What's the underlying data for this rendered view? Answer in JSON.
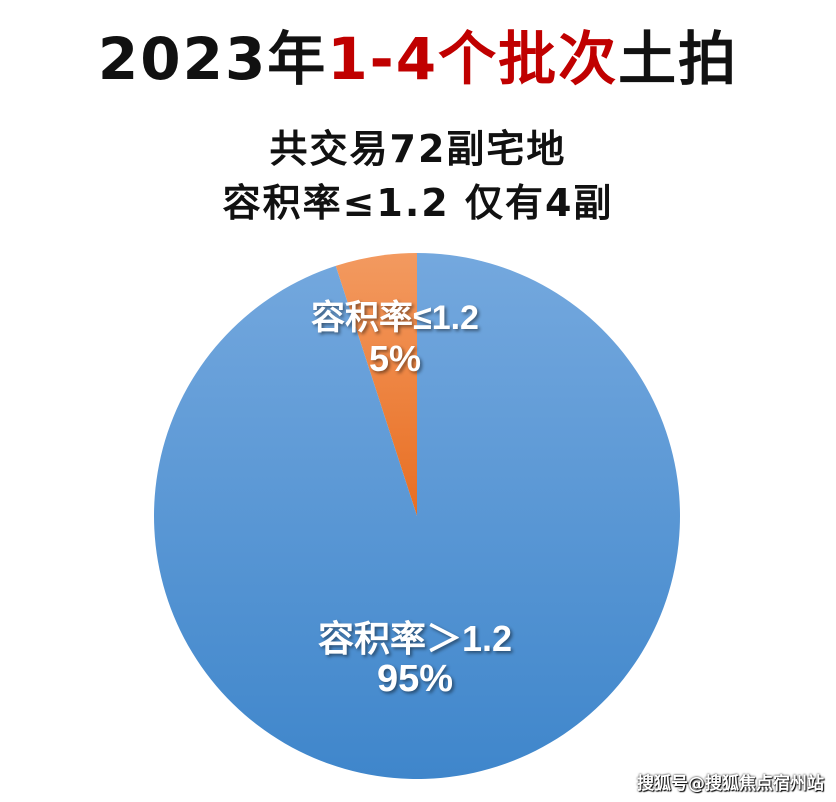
{
  "title": {
    "prefix": "2023年",
    "highlight": "1-4个批次",
    "suffix": "土拍",
    "highlight_color": "#c00000"
  },
  "subtitle": {
    "line1": "共交易72副宅地",
    "line2": "容积率≤1.2 仅有4副"
  },
  "chart_data": {
    "type": "pie",
    "start": "12 o'clock, counter-clockwise",
    "slices": [
      {
        "name": "容积率≤1.2",
        "value": 5,
        "label": "5%",
        "color": "#ee7f3a"
      },
      {
        "name": "容积率＞1.2",
        "value": 95,
        "label": "95%",
        "color": "#4f90d3"
      }
    ]
  },
  "watermark": "搜狐号@搜狐焦点宿州站"
}
